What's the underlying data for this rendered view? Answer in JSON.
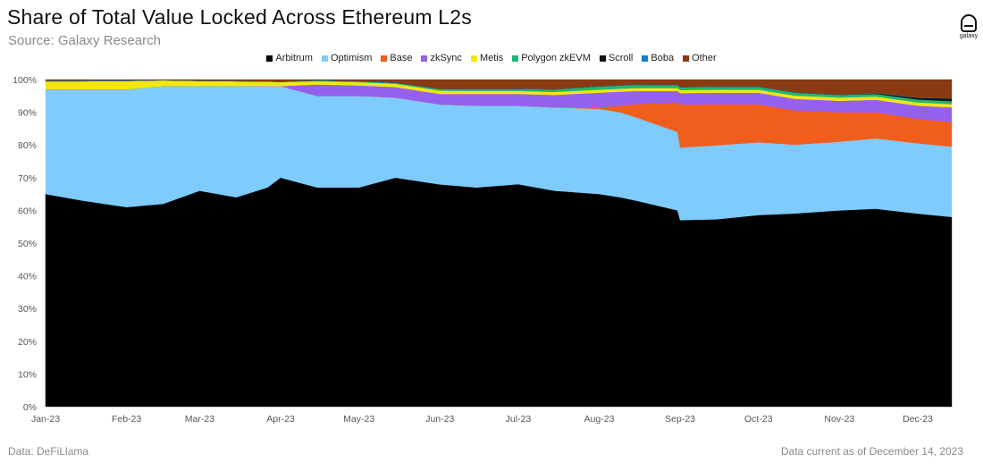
{
  "header": {
    "title": "Share of Total Value Locked Across Ethereum L2s",
    "subtitle": "Source: Galaxy Research",
    "logo_text": "galaxy"
  },
  "footer": {
    "left": "Data: DeFiLlama",
    "right": "Data current as of December 14, 2023"
  },
  "colors": {
    "Arbitrum": "#000000",
    "Optimism": "#7ecbfc",
    "Base": "#f15d1b",
    "zkSync": "#9660ef",
    "Metis": "#f5e60f",
    "Polygon zkEVM": "#20b774",
    "Scroll": "#111111",
    "Boba": "#1a7fc1",
    "Other": "#8a3a11"
  },
  "chart_data": {
    "type": "area",
    "stacked": true,
    "percent": true,
    "title": "Share of Total Value Locked Across Ethereum L2s",
    "ylim": [
      0,
      100
    ],
    "yticks": [
      "0%",
      "10%",
      "20%",
      "30%",
      "40%",
      "50%",
      "60%",
      "70%",
      "80%",
      "90%",
      "100%"
    ],
    "x_tick_labels": [
      "Jan-23",
      "Feb-23",
      "Mar-23",
      "Apr-23",
      "May-23",
      "Jun-23",
      "Jul-23",
      "Aug-23",
      "Sep-23",
      "Oct-23",
      "Nov-23",
      "Dec-23"
    ],
    "x_start": "2023-01-01",
    "x_end": "2023-12-14",
    "legend": [
      "Arbitrum",
      "Optimism",
      "Base",
      "zkSync",
      "Metis",
      "Polygon zkEVM",
      "Scroll",
      "Boba",
      "Other"
    ],
    "x": [
      "2023-01-01",
      "2023-01-15",
      "2023-02-01",
      "2023-02-15",
      "2023-03-01",
      "2023-03-15",
      "2023-03-27",
      "2023-04-01",
      "2023-04-15",
      "2023-05-01",
      "2023-05-15",
      "2023-06-01",
      "2023-06-15",
      "2023-07-01",
      "2023-07-15",
      "2023-08-01",
      "2023-08-09",
      "2023-08-15",
      "2023-08-31",
      "2023-09-01",
      "2023-09-15",
      "2023-10-01",
      "2023-10-15",
      "2023-11-01",
      "2023-11-15",
      "2023-12-01",
      "2023-12-14"
    ],
    "series": [
      {
        "name": "Arbitrum",
        "values": [
          65,
          63,
          61,
          62,
          66,
          64,
          67,
          70,
          67,
          67,
          70,
          68,
          67,
          68,
          66,
          65,
          64,
          63,
          60,
          56.5,
          57,
          58,
          59,
          60,
          60.5,
          59,
          58
        ]
      },
      {
        "name": "Optimism",
        "values": [
          32,
          34,
          36,
          36,
          32,
          34,
          31,
          28,
          28,
          28,
          24.5,
          24.5,
          25,
          24,
          25.5,
          26,
          26,
          25.5,
          24,
          22,
          22.5,
          22,
          21,
          21,
          21.5,
          21.5,
          21.5
        ]
      },
      {
        "name": "Base",
        "values": [
          0,
          0,
          0,
          0,
          0,
          0,
          0,
          0,
          0,
          0,
          0,
          0,
          0,
          0,
          0,
          0.5,
          2,
          4,
          9,
          13,
          12.5,
          11.5,
          10.5,
          9,
          8,
          7.5,
          7.5
        ]
      },
      {
        "name": "zkSync",
        "values": [
          0,
          0,
          0,
          0,
          0,
          0,
          0,
          0,
          3.5,
          3.2,
          3.2,
          3.2,
          3.6,
          3.6,
          3.8,
          4.5,
          4.3,
          4,
          3.5,
          3.5,
          3.5,
          3.5,
          3.5,
          3.5,
          3.8,
          4,
          4.5
        ]
      },
      {
        "name": "Metis",
        "values": [
          2.5,
          2.5,
          2.6,
          1.8,
          1.6,
          1.5,
          1.4,
          1.3,
          1.0,
          1.0,
          1.0,
          1.0,
          0.9,
          0.9,
          0.9,
          0.9,
          0.9,
          0.9,
          0.9,
          0.9,
          0.9,
          0.9,
          1.0,
          1.0,
          1.0,
          1.0,
          1.0
        ]
      },
      {
        "name": "Polygon zkEVM",
        "values": [
          0,
          0,
          0,
          0,
          0,
          0,
          0,
          0,
          0.2,
          0.3,
          0.3,
          0.5,
          0.6,
          0.6,
          0.8,
          1.0,
          1.0,
          1.0,
          0.9,
          0.9,
          0.9,
          0.9,
          0.9,
          0.8,
          0.8,
          0.9,
          0.9
        ]
      },
      {
        "name": "Scroll",
        "values": [
          0,
          0,
          0,
          0,
          0,
          0,
          0,
          0,
          0,
          0,
          0,
          0,
          0,
          0,
          0,
          0,
          0,
          0,
          0,
          0,
          0,
          0,
          0,
          0,
          0.2,
          0.5,
          0.8
        ]
      },
      {
        "name": "Boba",
        "values": [
          0.2,
          0.2,
          0.2,
          0.1,
          0.1,
          0.1,
          0.1,
          0.1,
          0.1,
          0.1,
          0.1,
          0.1,
          0.1,
          0.1,
          0.1,
          0.1,
          0.1,
          0.1,
          0.1,
          0.1,
          0.1,
          0.1,
          0.1,
          0.1,
          0.1,
          0.1,
          0.1
        ]
      },
      {
        "name": "Other",
        "values": [
          0.3,
          0.3,
          0.2,
          0.1,
          0.3,
          0.4,
          0.5,
          0.6,
          0.2,
          0.4,
          0.9,
          2.8,
          2.8,
          2.8,
          2.9,
          2.0,
          1.7,
          1.5,
          1.6,
          2.2,
          2.1,
          2.1,
          3.9,
          4.6,
          4.1,
          5.5,
          5.7
        ]
      }
    ]
  }
}
